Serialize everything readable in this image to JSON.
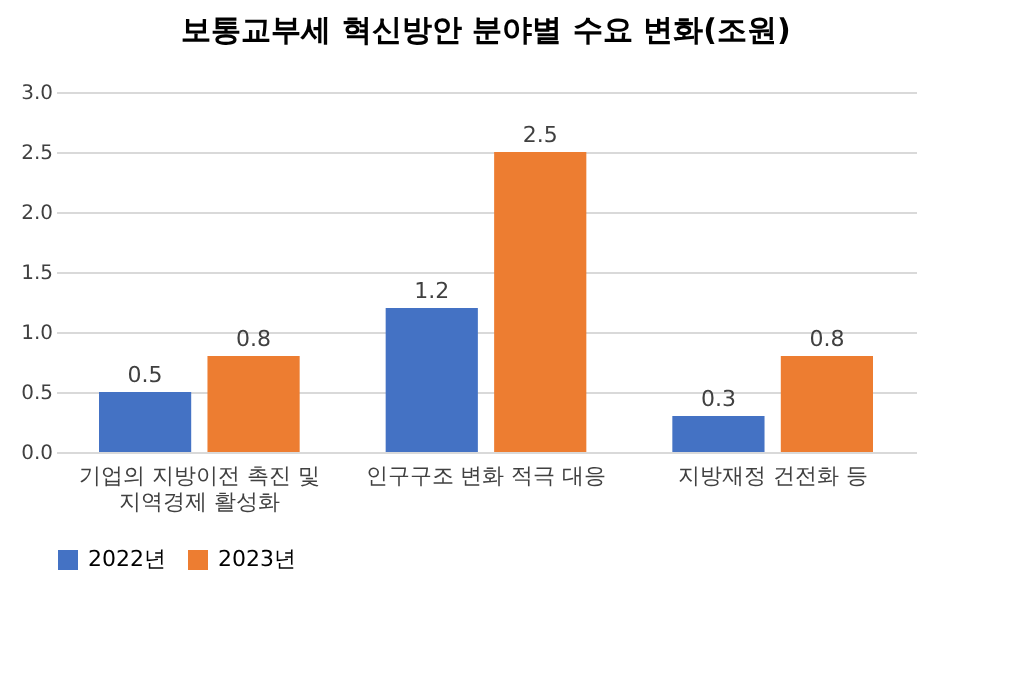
{
  "chart_data": {
    "type": "bar",
    "title": "보통교부세 혁신방안 분야별 수요 변화(조원)",
    "categories": [
      "기업의 지방이전 촉진 및\n지역경제 활성화",
      "인구구조 변화 적극 대응",
      "지방재정 건전화 등"
    ],
    "series": [
      {
        "name": "2022년",
        "color": "#4472c4",
        "values": [
          0.5,
          1.2,
          0.3
        ]
      },
      {
        "name": "2023년",
        "color": "#ed7d31",
        "values": [
          0.8,
          2.5,
          0.8
        ]
      }
    ],
    "ylim": [
      0,
      3.0
    ],
    "yticks": [
      {
        "value": 0,
        "label": "0.0"
      },
      {
        "value": 0.5,
        "label": "0.5"
      },
      {
        "value": 1.0,
        "label": "1.0"
      },
      {
        "value": 1.5,
        "label": "1.5"
      },
      {
        "value": 2.0,
        "label": "2.0"
      },
      {
        "value": 2.5,
        "label": "2.5"
      },
      {
        "value": 3.0,
        "label": "3.0"
      }
    ],
    "grid": "y",
    "legend": "bottom",
    "data_labels": true
  }
}
